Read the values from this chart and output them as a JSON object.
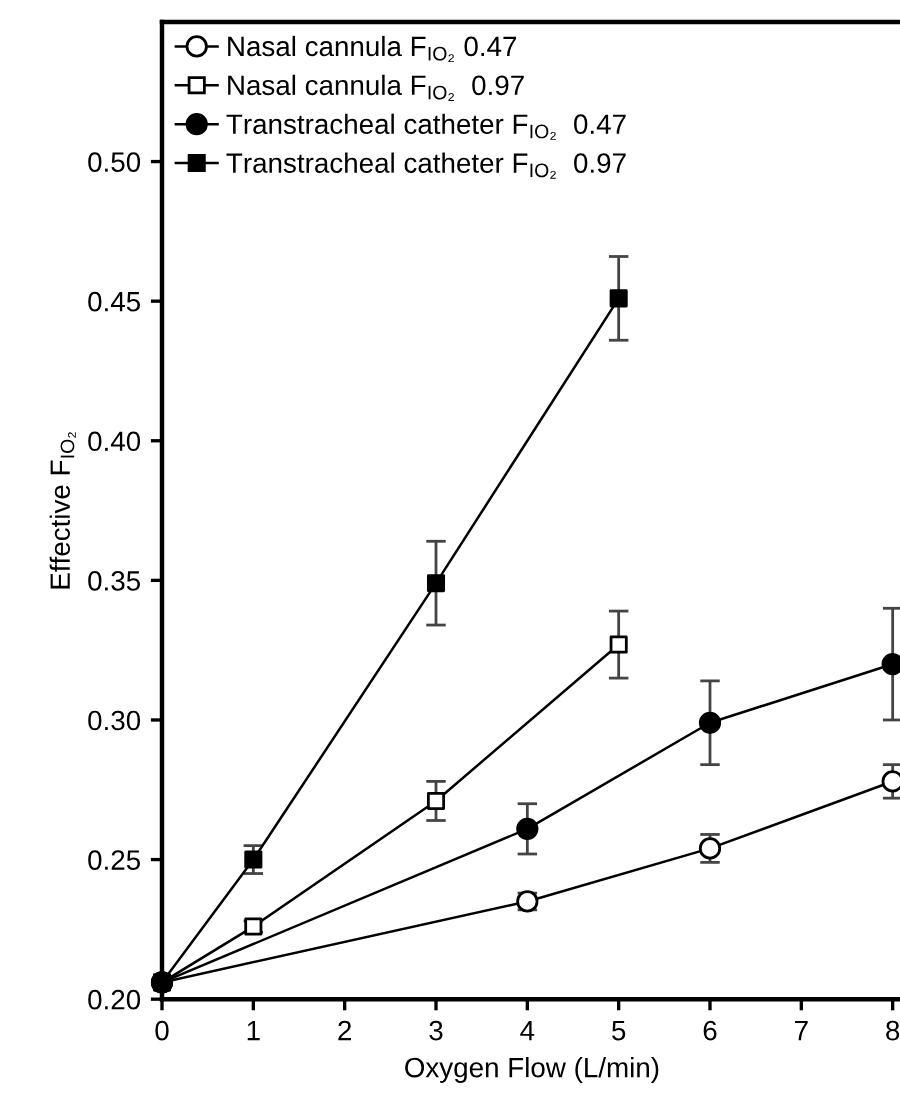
{
  "chart_data": {
    "type": "line",
    "xlabel": "Oxygen Flow (L/min)",
    "ylabel": "Effective F$_{IO₂}$",
    "xlim": [
      0,
      8.1
    ],
    "ylim": [
      0.2,
      0.55
    ],
    "xticks": [
      0,
      1,
      2,
      3,
      4,
      5,
      6,
      7,
      8
    ],
    "yticks": [
      {
        "value": 0.2,
        "label": "0.20"
      },
      {
        "value": 0.25,
        "label": "0.25"
      },
      {
        "value": 0.3,
        "label": "0.30"
      },
      {
        "value": 0.35,
        "label": "0.35"
      },
      {
        "value": 0.4,
        "label": "0.40"
      },
      {
        "value": 0.45,
        "label": "0.45"
      },
      {
        "value": 0.5,
        "label": "0.50"
      }
    ],
    "grid": false,
    "legend": "top left",
    "line_style": "solid",
    "series": [
      {
        "name": "Nasal cannula F$_{IO₂}$ 0.47",
        "color": "#000000",
        "marker": "circle",
        "colors": [
          "#ffffff",
          "#ffffff",
          "#ffffff",
          "#ffffff"
        ],
        "x": [
          0,
          4,
          6,
          8
        ],
        "values": [
          0.206,
          0.235,
          0.254,
          0.278
        ],
        "errors": [
          null,
          0.003,
          0.005,
          0.006
        ]
      },
      {
        "name": "Nasal cannula F$_{IO₂}$  0.97",
        "color": "#000000",
        "marker": "square",
        "colors": [
          "#ffffff",
          "#ffffff",
          "#ffffff",
          "#ffffff"
        ],
        "x": [
          0,
          1,
          3,
          5
        ],
        "values": [
          0.206,
          0.226,
          0.271,
          0.327
        ],
        "errors": [
          null,
          0.002,
          0.007,
          0.012
        ]
      },
      {
        "name": "Transtracheal catheter F$_{IO₂}$  0.47",
        "color": "#000000",
        "marker": "circle",
        "x": [
          0,
          4,
          6,
          8
        ],
        "values": [
          0.206,
          0.261,
          0.299,
          0.32
        ],
        "errors": [
          null,
          0.009,
          0.015,
          0.02
        ]
      },
      {
        "name": "Transtracheal catheter F$_{IO₂}$  0.97",
        "color": "#000000",
        "marker": "square",
        "x": [
          0,
          1,
          3,
          5
        ],
        "values": [
          0.206,
          0.25,
          0.349,
          0.451
        ],
        "errors": [
          null,
          0.005,
          0.015,
          0.015
        ]
      }
    ]
  }
}
